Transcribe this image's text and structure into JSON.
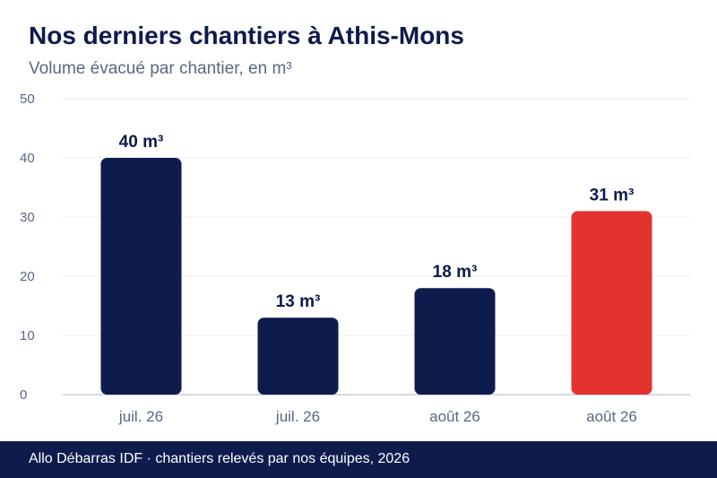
{
  "chart_data": {
    "type": "bar",
    "title": "Nos derniers chantiers à Athis-Mons",
    "subtitle": "Volume évacué par chantier, en m³",
    "categories": [
      "juil. 26",
      "juil. 26",
      "août 26",
      "août 26"
    ],
    "values": [
      40,
      13,
      18,
      31
    ],
    "value_labels": [
      "40 m³",
      "13 m³",
      "18 m³",
      "31 m³"
    ],
    "y_ticks": [
      "0",
      "10",
      "20",
      "30",
      "40",
      "50"
    ],
    "ylim": [
      0,
      50
    ],
    "grid": true,
    "colors": {
      "bar": "#0e1b4d",
      "highlight": "#e3322f",
      "grid": "#ececf1",
      "axis": "#c9ccd8",
      "tick_text": "#5a6682",
      "label_text": "#0e1b4d"
    },
    "highlight_index": 3
  },
  "footer": {
    "text": "Allo Débarras IDF · chantiers relevés par nos équipes, 2026"
  }
}
